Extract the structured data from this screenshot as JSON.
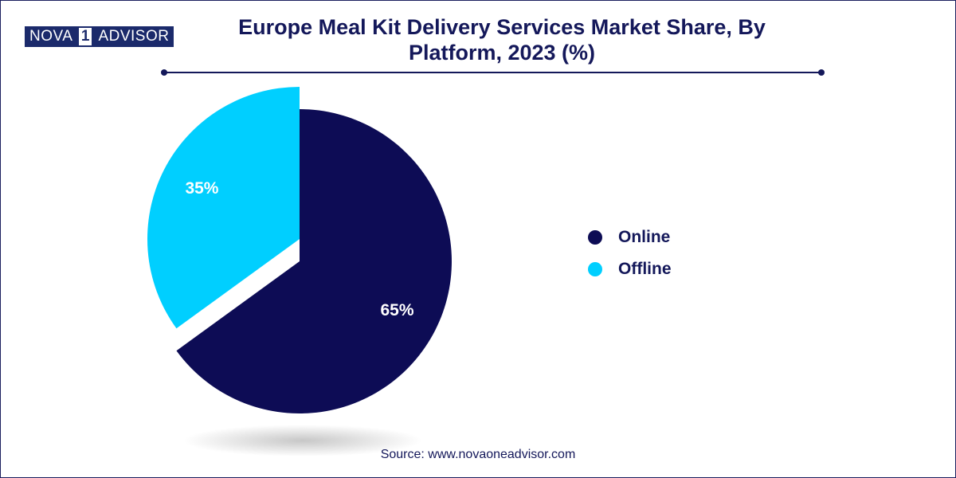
{
  "header": {
    "logo": {
      "left": "NOVA",
      "mid": "1",
      "right": "ADVISOR"
    },
    "title": "Europe Meal Kit Delivery Services Market Share, By Platform, 2023 (%)"
  },
  "chart_data": {
    "type": "pie",
    "title": "Europe Meal Kit Delivery Services Market Share, By Platform, 2023 (%)",
    "slices": [
      {
        "label": "Online",
        "value": 65,
        "display": "65%",
        "color": "#0d0c55",
        "exploded": false
      },
      {
        "label": "Offline",
        "value": 35,
        "display": "35%",
        "color": "#00cfff",
        "exploded": true
      }
    ],
    "legend_position": "right"
  },
  "legend": {
    "items": [
      {
        "label": "Online",
        "color": "#0d0c55"
      },
      {
        "label": "Offline",
        "color": "#00cfff"
      }
    ]
  },
  "footer": {
    "source": "Source: www.novaoneadvisor.com"
  }
}
